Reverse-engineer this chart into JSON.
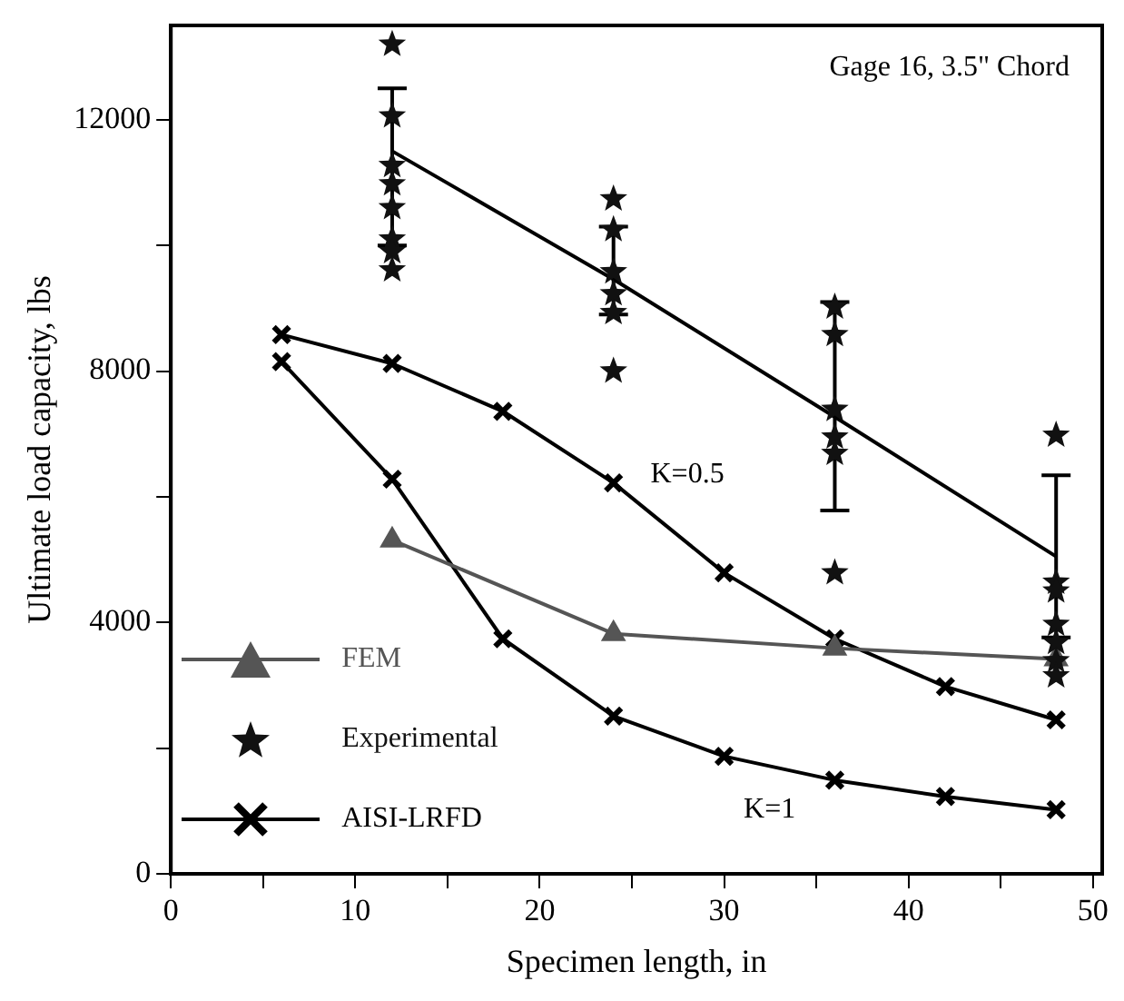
{
  "chart_data": {
    "type": "line",
    "xlabel": "Specimen length, in",
    "ylabel": "Ultimate load capacity, lbs",
    "xlim": [
      0,
      50.5
    ],
    "xticks": [
      0,
      {
        "value": 5,
        "label": null
      },
      10,
      {
        "value": 15,
        "label": null
      },
      20,
      {
        "value": 25,
        "label": null
      },
      30,
      {
        "value": 35,
        "label": null
      },
      40,
      {
        "value": 45,
        "label": null
      },
      50
    ],
    "ylim": [
      0,
      13500
    ],
    "yticks": [
      0,
      {
        "value": 2000,
        "label": null
      },
      4000,
      {
        "value": 6000,
        "label": null
      },
      8000,
      {
        "value": 10000,
        "label": null
      },
      12000
    ],
    "grid": false,
    "legend": "bottom left",
    "annotations": [
      "Gage 16, 3.5\" Chord",
      "K=0.5",
      "K=1"
    ],
    "series": [
      {
        "name": "FEM",
        "marker": "triangle",
        "color": "#555555",
        "x": [
          12,
          24,
          36,
          48
        ],
        "values": [
          5310,
          3820,
          3590,
          3420
        ]
      },
      {
        "name": "Experimental",
        "type": "scatter",
        "marker": "star",
        "color": "#111111",
        "x": [
          12,
          12,
          12,
          12,
          12,
          12,
          12,
          12,
          24,
          24,
          24,
          24,
          24,
          24,
          36,
          36,
          36,
          36,
          36,
          36,
          48,
          48,
          48,
          48,
          48,
          48,
          48
        ],
        "values": [
          13200,
          12060,
          11270,
          10980,
          10600,
          10100,
          9900,
          9610,
          10740,
          10250,
          9580,
          9230,
          8930,
          8000,
          9020,
          8580,
          7390,
          6950,
          6690,
          4790,
          6980,
          4640,
          4500,
          3970,
          3680,
          3390,
          3150
        ]
      },
      {
        "marker": "none",
        "color": "#000000",
        "x": [
          12,
          24,
          36,
          48
        ],
        "values": [
          11500,
          9460,
          7270,
          5050
        ],
        "errors": [
          [
            10000,
            12500
          ],
          [
            8900,
            10300
          ],
          [
            5780,
            9100
          ],
          [
            3760,
            6340
          ]
        ]
      },
      {
        "name": "AISI-LRFD",
        "marker": "cross",
        "color": "#000000",
        "x": [
          6,
          12,
          18,
          24,
          30,
          36,
          42,
          48
        ],
        "values": [
          8580,
          8120,
          7360,
          6220,
          4790,
          3740,
          2980,
          2450
        ]
      },
      {
        "marker": "cross",
        "color": "#000000",
        "x": [
          6,
          12,
          18,
          24,
          30,
          36,
          42,
          48
        ],
        "values": [
          8150,
          6280,
          3740,
          2510,
          1870,
          1490,
          1230,
          1020
        ]
      }
    ]
  }
}
